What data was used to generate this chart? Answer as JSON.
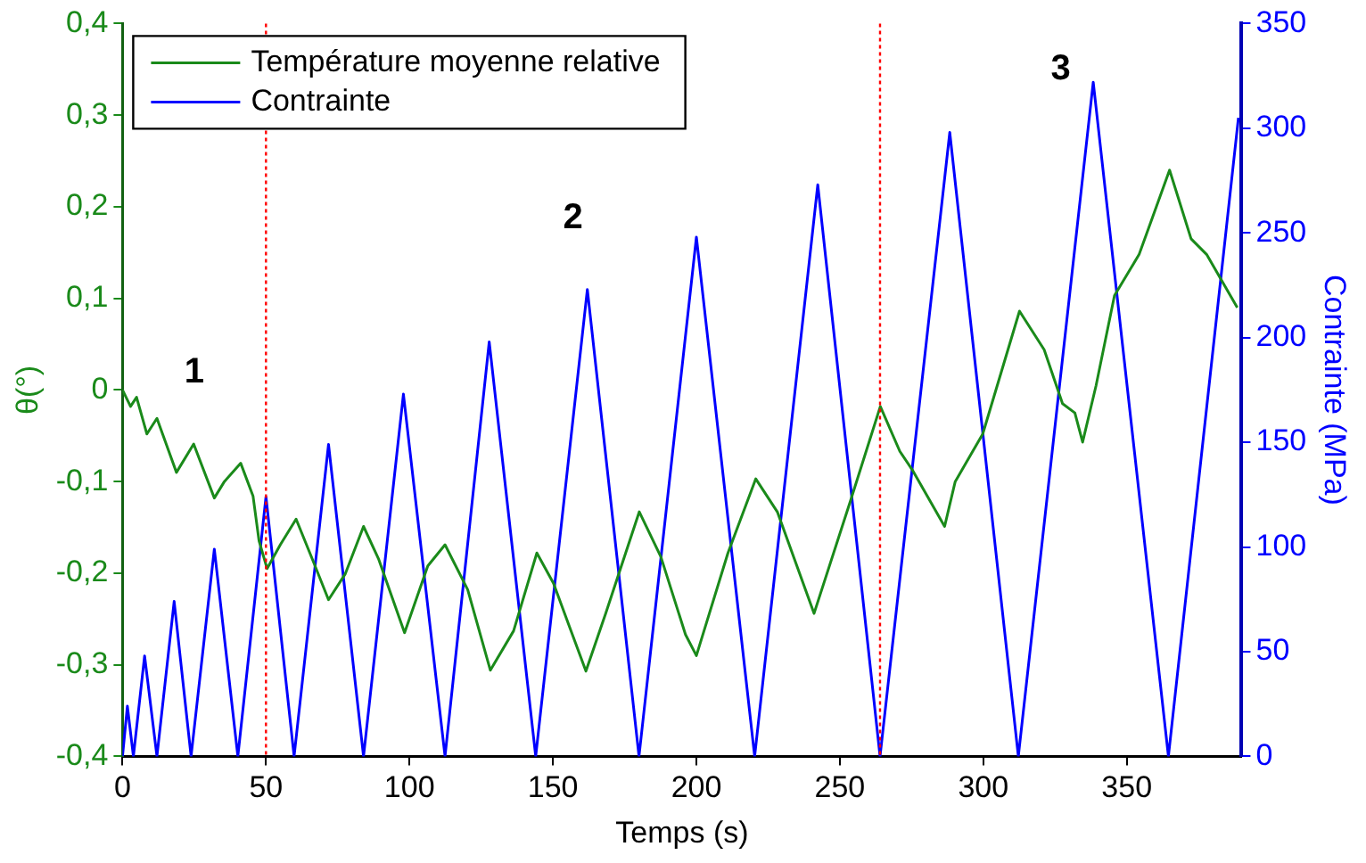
{
  "chart_data": {
    "type": "line",
    "xlabel": "Temps (s)",
    "ylabel": "θ(°)",
    "y2label": "Contrainte (MPa)",
    "xlim": [
      0,
      390
    ],
    "xticks": [
      0,
      50,
      100,
      150,
      200,
      250,
      300,
      350
    ],
    "ylim": [
      -0.4,
      0.4
    ],
    "yticks": [
      {
        "value": -0.4,
        "label": "-0,4"
      },
      {
        "value": -0.3,
        "label": "-0,3"
      },
      {
        "value": -0.2,
        "label": "-0,2"
      },
      {
        "value": -0.1,
        "label": "-0,1"
      },
      0,
      {
        "value": 0.1,
        "label": "0,1"
      },
      {
        "value": 0.2,
        "label": "0,2"
      },
      {
        "value": 0.3,
        "label": "0,3"
      },
      {
        "value": 0.4,
        "label": "0,4"
      }
    ],
    "y2lim": [
      0,
      350
    ],
    "y2ticks": [
      0,
      50,
      100,
      150,
      200,
      250,
      300,
      350
    ],
    "grid": false,
    "legend": "top left",
    "marker": "none",
    "line_style": "solid",
    "series": [
      {
        "name": "Température moyenne relative",
        "color": "#1a8a1a",
        "axis": "y",
        "x": [
          0,
          2.8,
          4.9,
          8.5,
          12,
          18.8,
          24.8,
          32,
          35.5,
          41.2,
          45.5,
          47.6,
          50.4,
          55,
          60.5,
          66.2,
          71.8,
          77.6,
          84,
          89.3,
          98.3,
          106.4,
          112.4,
          120.3,
          128.2,
          136.3,
          144.4,
          150.2,
          155.6,
          161.5,
          168.4,
          180.1,
          187.6,
          196.2,
          200,
          211,
          220.7,
          228.2,
          241,
          253.8,
          264.1,
          270.9,
          275.2,
          286.5,
          290.2,
          299.8,
          312.6,
          321.2,
          327.6,
          331.9,
          334.6,
          339.3,
          345.7,
          354.3,
          364.9,
          372.4,
          377.8,
          388.5
        ],
        "values": [
          0.0,
          -0.018,
          -0.008,
          -0.048,
          -0.031,
          -0.09,
          -0.059,
          -0.118,
          -0.1,
          -0.08,
          -0.116,
          -0.165,
          -0.195,
          -0.169,
          -0.141,
          -0.185,
          -0.229,
          -0.201,
          -0.149,
          -0.185,
          -0.265,
          -0.192,
          -0.169,
          -0.218,
          -0.306,
          -0.263,
          -0.178,
          -0.211,
          -0.257,
          -0.307,
          -0.244,
          -0.133,
          -0.182,
          -0.267,
          -0.29,
          -0.178,
          -0.097,
          -0.133,
          -0.244,
          -0.12,
          -0.018,
          -0.067,
          -0.087,
          -0.149,
          -0.1,
          -0.048,
          0.086,
          0.044,
          -0.015,
          -0.025,
          -0.057,
          0.005,
          0.103,
          0.148,
          0.24,
          0.165,
          0.148,
          0.09
        ]
      },
      {
        "name": "Contrainte",
        "color": "#0000ff",
        "axis": "y2",
        "x": [
          0,
          1.7,
          3.8,
          7.7,
          12,
          18,
          23.9,
          32,
          40.2,
          50,
          59.8,
          71.8,
          84,
          97.9,
          112.4,
          127.8,
          144,
          162,
          180,
          200,
          220.3,
          242.3,
          264,
          288.3,
          312.2,
          338.3,
          364.5,
          388.9
        ],
        "values": [
          0,
          24,
          0,
          48,
          0,
          74,
          0,
          99,
          0,
          124,
          0,
          149,
          0,
          173,
          0,
          198,
          0,
          223,
          0,
          248,
          0,
          273,
          0,
          298,
          0,
          322,
          0,
          305
        ]
      }
    ],
    "ref_lines": [
      {
        "axis": "x",
        "value": 50,
        "color": "#ff0000",
        "line_style": "dotted"
      },
      {
        "axis": "x",
        "value": 264,
        "color": "#ff0000",
        "line_style": "dotted"
      }
    ],
    "annotations": [
      "1",
      "2",
      "3"
    ]
  }
}
